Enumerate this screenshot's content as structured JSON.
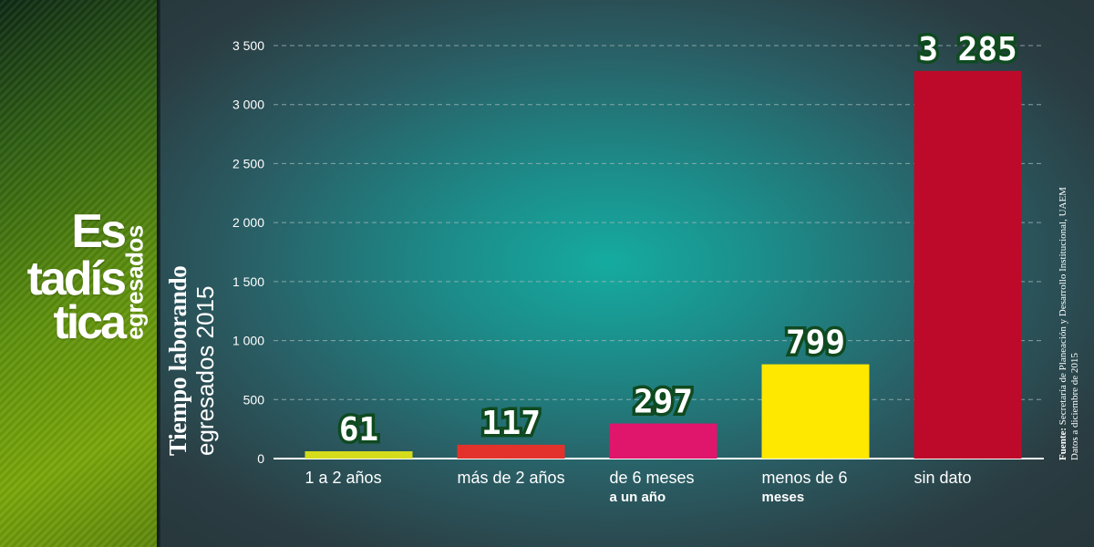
{
  "logo": {
    "line1": "Es",
    "line2": "tadís",
    "line3": "tica",
    "subtitle": "egresados"
  },
  "y_title": {
    "line1": "Tiempo laborando",
    "line2": "egresados 2015"
  },
  "source": {
    "label": "Fuente:",
    "text": "Secretaría de Planeación y Desarrollo Institucional, UAEM",
    "line2": "Datos a diciembre de 2015"
  },
  "colors": {
    "sidebar": "#4f7e10",
    "grid": "#9fb7b9",
    "label_outline": "#0f4a20"
  },
  "chart_data": {
    "type": "bar",
    "categories": [
      "1 a 2 años",
      "más de 2 años",
      "de 6 meses",
      "menos de 6",
      "sin dato"
    ],
    "category_second_lines": [
      "",
      "",
      "a un año",
      "meses",
      ""
    ],
    "values": [
      61,
      117,
      297,
      799,
      3285
    ],
    "value_labels": [
      "61",
      "117",
      "297",
      "799",
      "3 285"
    ],
    "bar_colors": [
      "#d5dc1b",
      "#e3322b",
      "#e0156c",
      "#ffe800",
      "#be0a2a"
    ],
    "yticks": [
      0,
      500,
      1000,
      1500,
      2000,
      2500,
      3000,
      3500
    ],
    "ytick_labels": [
      "0",
      "500",
      "1 000",
      "1 500",
      "2 000",
      "2 500",
      "3 000",
      "3 500"
    ],
    "ylim": [
      0,
      3500
    ],
    "grid": true
  }
}
